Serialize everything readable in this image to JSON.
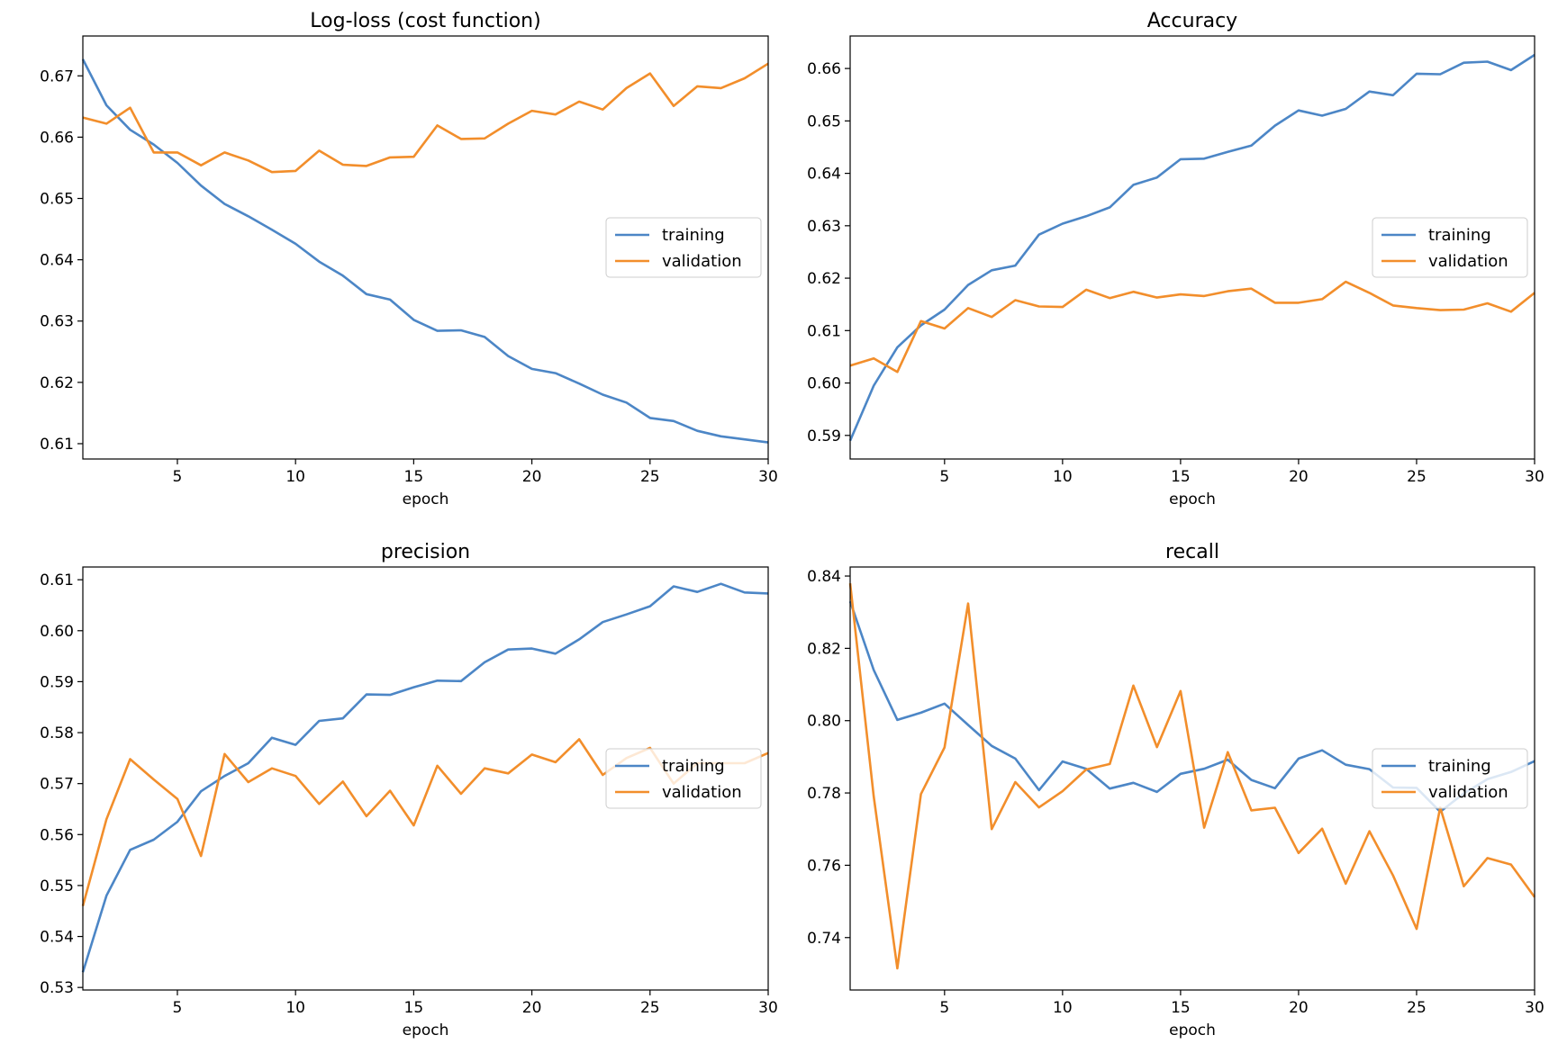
{
  "figure": {
    "legend_location": "center right",
    "colors": {
      "training": "#4c86c6",
      "validation": "#f28e2b"
    }
  },
  "chart_data": [
    {
      "type": "line",
      "title": "Log-loss (cost function)",
      "xlabel": "epoch",
      "ylabel": "",
      "xlim": [
        1,
        30
      ],
      "ylim": [
        0.6075,
        0.6765
      ],
      "xticks": [
        5,
        10,
        15,
        20,
        25,
        30
      ],
      "yticks": [
        0.61,
        0.62,
        0.63,
        0.64,
        0.65,
        0.66,
        0.67
      ],
      "ytick_labels": [
        "0.61",
        "0.62",
        "0.63",
        "0.64",
        "0.65",
        "0.66",
        "0.67"
      ],
      "x": [
        1,
        2,
        3,
        4,
        5,
        6,
        7,
        8,
        9,
        10,
        11,
        12,
        13,
        14,
        15,
        16,
        17,
        18,
        19,
        20,
        21,
        22,
        23,
        24,
        25,
        26,
        27,
        28,
        29,
        30
      ],
      "series": [
        {
          "name": "training",
          "values": [
            0.6727,
            0.6652,
            0.6612,
            0.6588,
            0.6558,
            0.6521,
            0.6491,
            0.6471,
            0.6449,
            0.6426,
            0.6397,
            0.6374,
            0.6344,
            0.6335,
            0.6302,
            0.6284,
            0.6285,
            0.6274,
            0.6243,
            0.6222,
            0.6215,
            0.6198,
            0.618,
            0.6167,
            0.6142,
            0.6137,
            0.6121,
            0.6112,
            0.6107,
            0.6102
          ]
        },
        {
          "name": "validation",
          "values": [
            0.6632,
            0.6622,
            0.6648,
            0.6575,
            0.6575,
            0.6554,
            0.6575,
            0.6562,
            0.6543,
            0.6545,
            0.6578,
            0.6555,
            0.6553,
            0.6567,
            0.6568,
            0.6619,
            0.6597,
            0.6598,
            0.6622,
            0.6643,
            0.6637,
            0.6658,
            0.6645,
            0.668,
            0.6704,
            0.6651,
            0.6683,
            0.668,
            0.6696,
            0.672
          ]
        }
      ]
    },
    {
      "type": "line",
      "title": "Accuracy",
      "xlabel": "epoch",
      "ylabel": "",
      "xlim": [
        1,
        30
      ],
      "ylim": [
        0.5855,
        0.6662
      ],
      "xticks": [
        5,
        10,
        15,
        20,
        25,
        30
      ],
      "yticks": [
        0.59,
        0.6,
        0.61,
        0.62,
        0.63,
        0.64,
        0.65,
        0.66
      ],
      "ytick_labels": [
        "0.59",
        "0.60",
        "0.61",
        "0.62",
        "0.63",
        "0.64",
        "0.65",
        "0.66"
      ],
      "x": [
        1,
        2,
        3,
        4,
        5,
        6,
        7,
        8,
        9,
        10,
        11,
        12,
        13,
        14,
        15,
        16,
        17,
        18,
        19,
        20,
        21,
        22,
        23,
        24,
        25,
        26,
        27,
        28,
        29,
        30
      ],
      "series": [
        {
          "name": "training",
          "values": [
            0.589,
            0.5995,
            0.6068,
            0.611,
            0.614,
            0.6187,
            0.6215,
            0.6224,
            0.6283,
            0.6304,
            0.6318,
            0.6335,
            0.6378,
            0.6392,
            0.6427,
            0.6428,
            0.6441,
            0.6453,
            0.6491,
            0.652,
            0.651,
            0.6523,
            0.6556,
            0.6549,
            0.659,
            0.6589,
            0.6611,
            0.6613,
            0.6597,
            0.6626
          ]
        },
        {
          "name": "validation",
          "values": [
            0.6033,
            0.6047,
            0.6021,
            0.6118,
            0.6104,
            0.6143,
            0.6126,
            0.6158,
            0.6146,
            0.6145,
            0.6178,
            0.6162,
            0.6174,
            0.6163,
            0.6169,
            0.6166,
            0.6175,
            0.618,
            0.6153,
            0.6153,
            0.616,
            0.6193,
            0.6172,
            0.6148,
            0.6143,
            0.6139,
            0.614,
            0.6152,
            0.6136,
            0.6172
          ]
        }
      ]
    },
    {
      "type": "line",
      "title": "precision",
      "xlabel": "epoch",
      "ylabel": "",
      "xlim": [
        1,
        30
      ],
      "ylim": [
        0.5295,
        0.6125
      ],
      "xticks": [
        5,
        10,
        15,
        20,
        25,
        30
      ],
      "yticks": [
        0.53,
        0.54,
        0.55,
        0.56,
        0.57,
        0.58,
        0.59,
        0.6,
        0.61
      ],
      "ytick_labels": [
        "0.53",
        "0.54",
        "0.55",
        "0.56",
        "0.57",
        "0.58",
        "0.59",
        "0.60",
        "0.61"
      ],
      "x": [
        1,
        2,
        3,
        4,
        5,
        6,
        7,
        8,
        9,
        10,
        11,
        12,
        13,
        14,
        15,
        16,
        17,
        18,
        19,
        20,
        21,
        22,
        23,
        24,
        25,
        26,
        27,
        28,
        29,
        30
      ],
      "series": [
        {
          "name": "training",
          "values": [
            0.533,
            0.548,
            0.557,
            0.559,
            0.5625,
            0.5685,
            0.5715,
            0.574,
            0.579,
            0.5776,
            0.5823,
            0.5828,
            0.5875,
            0.5874,
            0.5889,
            0.5902,
            0.5901,
            0.5938,
            0.5963,
            0.5965,
            0.5955,
            0.5983,
            0.6017,
            0.6032,
            0.6048,
            0.6087,
            0.6076,
            0.6092,
            0.6075,
            0.6073
          ]
        },
        {
          "name": "validation",
          "values": [
            0.546,
            0.563,
            0.5748,
            0.5708,
            0.567,
            0.5558,
            0.5758,
            0.5703,
            0.573,
            0.5715,
            0.566,
            0.5704,
            0.5636,
            0.5686,
            0.5618,
            0.5735,
            0.568,
            0.573,
            0.572,
            0.5757,
            0.5742,
            0.5787,
            0.5717,
            0.575,
            0.577,
            0.57,
            0.574,
            0.574,
            0.574,
            0.576
          ]
        }
      ]
    },
    {
      "type": "line",
      "title": "recall",
      "xlabel": "epoch",
      "ylabel": "",
      "xlim": [
        1,
        30
      ],
      "ylim": [
        0.7255,
        0.8425
      ],
      "xticks": [
        5,
        10,
        15,
        20,
        25,
        30
      ],
      "yticks": [
        0.74,
        0.76,
        0.78,
        0.8,
        0.82,
        0.84
      ],
      "ytick_labels": [
        "0.74",
        "0.76",
        "0.78",
        "0.80",
        "0.82",
        "0.84"
      ],
      "x": [
        1,
        2,
        3,
        4,
        5,
        6,
        7,
        8,
        9,
        10,
        11,
        12,
        13,
        14,
        15,
        16,
        17,
        18,
        19,
        20,
        21,
        22,
        23,
        24,
        25,
        26,
        27,
        28,
        29,
        30
      ],
      "series": [
        {
          "name": "training",
          "values": [
            0.833,
            0.814,
            0.8002,
            0.8022,
            0.8047,
            0.7988,
            0.793,
            0.7895,
            0.7808,
            0.7887,
            0.7867,
            0.7812,
            0.7828,
            0.7803,
            0.7853,
            0.7867,
            0.7892,
            0.7836,
            0.7813,
            0.7895,
            0.7918,
            0.7878,
            0.7866,
            0.7815,
            0.7814,
            0.7748,
            0.7799,
            0.7838,
            0.7858,
            0.7888
          ]
        },
        {
          "name": "validation",
          "values": [
            0.838,
            0.779,
            0.7315,
            0.7797,
            0.7926,
            0.8324,
            0.77,
            0.783,
            0.776,
            0.7805,
            0.7865,
            0.788,
            0.8097,
            0.7927,
            0.8082,
            0.7704,
            0.7913,
            0.7752,
            0.7759,
            0.7634,
            0.7701,
            0.7549,
            0.7694,
            0.7572,
            0.7424,
            0.776,
            0.7542,
            0.762,
            0.7602,
            0.7512
          ]
        }
      ]
    }
  ]
}
